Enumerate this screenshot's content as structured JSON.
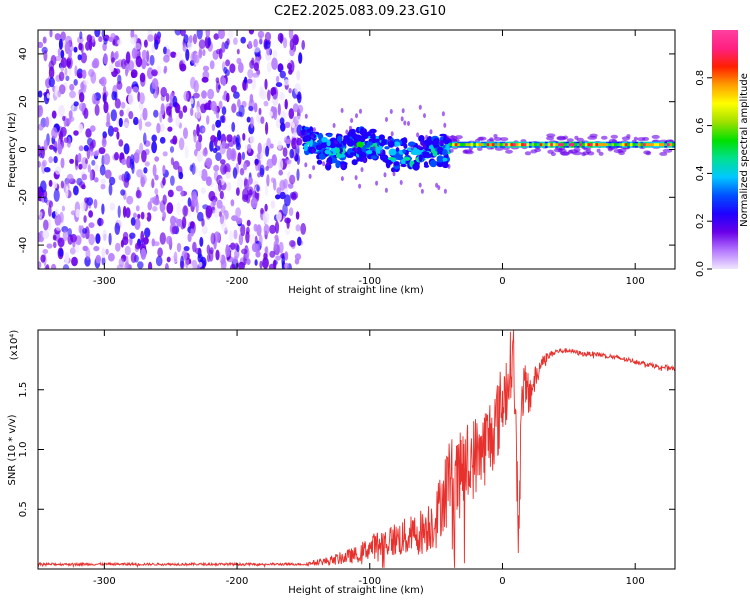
{
  "title": "C2E2.2025.083.09.23.G10",
  "chart_data": [
    {
      "type": "heatmap",
      "xlabel": "Height of straight line (km)",
      "ylabel": "Frequency (Hz)",
      "xlim": [
        -350,
        130
      ],
      "ylim": [
        -50,
        50
      ],
      "xticks": [
        -300,
        -200,
        -100,
        0,
        100
      ],
      "yticks": [
        -40,
        -20,
        0,
        20,
        40
      ],
      "colorbar": {
        "label": "Normalized spectral amplitude",
        "range": [
          0,
          1
        ],
        "ticks": [
          0.0,
          0.2,
          0.4,
          0.6,
          0.8
        ],
        "tick_labels": [
          "0.0",
          "0.2",
          "0.4",
          "0.6",
          "0.8"
        ],
        "colors": [
          "#f0e6ff",
          "#b478ff",
          "#6a00e8",
          "#1f00ff",
          "#0050ff",
          "#00c8ff",
          "#00e090",
          "#00e000",
          "#a0e000",
          "#ffff00",
          "#ffa000",
          "#ff2000",
          "#ff2080",
          "#ff40a0"
        ]
      },
      "regions": [
        {
          "name": "noise",
          "x": [
            -350,
            -150
          ],
          "freq": [
            -50,
            50
          ],
          "amplitude": 0.12
        },
        {
          "name": "transition",
          "x": [
            -150,
            -40
          ],
          "freq_center": [
            3,
            -3
          ],
          "freq_halfwidth": 8,
          "amplitude": 0.35
        },
        {
          "name": "signal",
          "x": [
            -40,
            130
          ],
          "freq_center": 2,
          "freq_halfwidth": 4,
          "amplitude": 0.9
        }
      ]
    },
    {
      "type": "line",
      "xlabel": "Height of straight line (km)",
      "ylabel": "SNR (10 * v/v)",
      "y_multiplier": "(x10⁴)",
      "xlim": [
        -350,
        130
      ],
      "ylim": [
        0,
        2
      ],
      "xticks": [
        -300,
        -200,
        -100,
        0,
        100
      ],
      "yticks": [
        0.5,
        1.0,
        1.5
      ],
      "ytick_labels": [
        "0.5",
        "1.0",
        "1.5"
      ],
      "color": "#e8302c",
      "series": [
        {
          "x": [
            -350,
            -300,
            -250,
            -200,
            -150,
            -130,
            -110,
            -100,
            -90,
            -80,
            -70,
            -60,
            -50,
            -45,
            -40,
            -35,
            -30,
            -25,
            -20,
            -15,
            -10,
            -5,
            0,
            5,
            8,
            10,
            12,
            15,
            20,
            25,
            30,
            40,
            50,
            60,
            70,
            80,
            90,
            100,
            110,
            120,
            130
          ],
          "values": [
            0.04,
            0.04,
            0.04,
            0.04,
            0.04,
            0.07,
            0.12,
            0.18,
            0.22,
            0.25,
            0.27,
            0.32,
            0.42,
            0.6,
            0.8,
            0.7,
            0.85,
            0.9,
            0.95,
            1.0,
            1.1,
            1.2,
            1.4,
            1.6,
            1.9,
            1.2,
            0.35,
            1.5,
            1.45,
            1.6,
            1.75,
            1.82,
            1.83,
            1.8,
            1.8,
            1.78,
            1.76,
            1.74,
            1.71,
            1.69,
            1.68
          ],
          "noise_amplitude": [
            0.01,
            0.01,
            0.01,
            0.01,
            0.01,
            0.04,
            0.07,
            0.1,
            0.13,
            0.15,
            0.17,
            0.2,
            0.25,
            0.3,
            0.35,
            0.35,
            0.35,
            0.35,
            0.35,
            0.35,
            0.35,
            0.35,
            0.35,
            0.3,
            0.3,
            0.3,
            0.3,
            0.25,
            0.2,
            0.1,
            0.05,
            0.02,
            0.02,
            0.02,
            0.02,
            0.02,
            0.02,
            0.02,
            0.02,
            0.02,
            0.02
          ]
        }
      ]
    }
  ]
}
